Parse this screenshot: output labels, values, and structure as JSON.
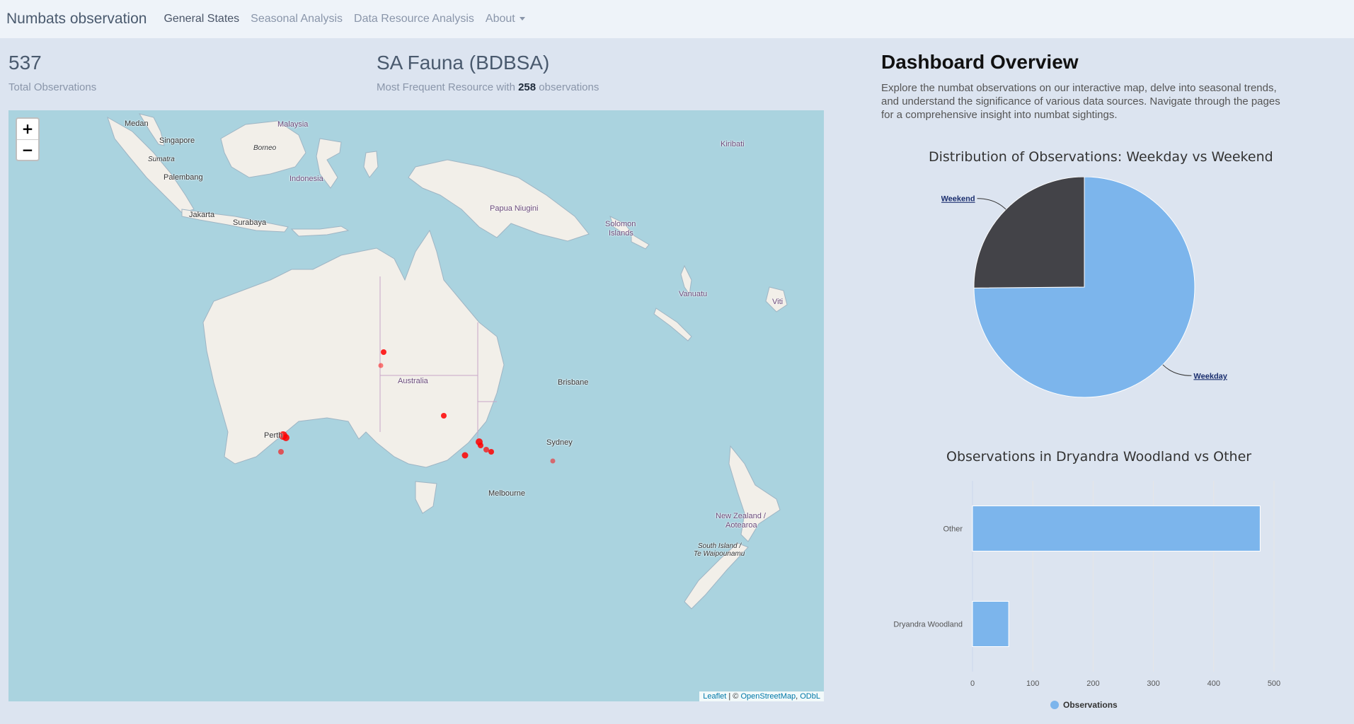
{
  "nav": {
    "brand": "Numbats observation",
    "links": [
      "General States",
      "Seasonal Analysis",
      "Data Resource Analysis",
      "About"
    ]
  },
  "stats": {
    "total_value": "537",
    "total_label": "Total Observations",
    "resource_value": "SA Fauna (BDBSA)",
    "resource_label_prefix": "Most Frequent Resource with",
    "resource_count": "258",
    "resource_label_suffix": "observations"
  },
  "map": {
    "zoom_in": "+",
    "zoom_out": "−",
    "labels": [
      "Medan",
      "Malaysia",
      "Singapore",
      "Borneo",
      "Sumatra",
      "Palembang",
      "Indonesia",
      "Jakarta",
      "Surabaya",
      "Papua Niugini",
      "Kiribati",
      "Solomon",
      "Islands",
      "Vanuatu",
      "Viti",
      "Australia",
      "Brisbane",
      "Perth",
      "Sydney",
      "Melbourne",
      "New Zealand /",
      "Aotearoa",
      "South Island /",
      "Te Waipounamu"
    ],
    "attribution": {
      "leaflet": "Leaflet",
      "sep": " | © ",
      "osm": "OpenStreetMap",
      "comma": ", ",
      "odbl": "ODbL"
    }
  },
  "panel": {
    "title": "Dashboard Overview",
    "description": "Explore the numbat observations on our interactive map, delve into seasonal trends, and understand the significance of various data sources. Navigate through the pages for a comprehensive insight into numbat sightings."
  },
  "chart_data": [
    {
      "type": "pie",
      "title": "Distribution of Observations: Weekday vs Weekend",
      "labels": [
        "Weekday",
        "Weekend"
      ],
      "values": [
        402,
        135
      ],
      "colors": [
        "#7cb5ec",
        "#434348"
      ]
    },
    {
      "type": "bar",
      "orientation": "horizontal",
      "title": "Observations in Dryandra Woodland vs Other",
      "categories": [
        "Other",
        "Dryandra Woodland"
      ],
      "series": [
        {
          "name": "Observations",
          "values": [
            477,
            60
          ]
        }
      ],
      "xlim": [
        0,
        500
      ],
      "xticks": [
        "0",
        "100",
        "200",
        "300",
        "400",
        "500"
      ],
      "color": "#7cb5ec"
    }
  ]
}
